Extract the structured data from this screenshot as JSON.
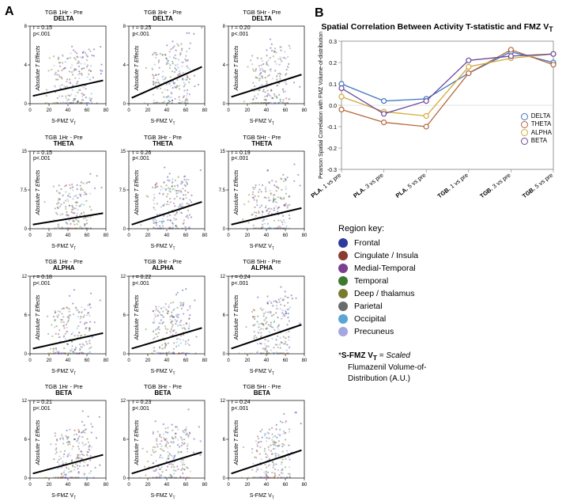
{
  "panelA_label": "A",
  "panelB_label": "B",
  "scatter": {
    "ylabel": "Absolute T Effects",
    "xlabel": "S-FMZ V",
    "xlabel_sub": "T",
    "xlim": [
      0,
      80
    ],
    "xticks": [
      0,
      20,
      40,
      60,
      80
    ],
    "ylim_by_row": [
      [
        0,
        8
      ],
      [
        0,
        15
      ],
      [
        0,
        12
      ],
      [
        0,
        12
      ]
    ],
    "yticks_by_row": [
      [
        0,
        8
      ],
      [
        0,
        15
      ],
      [
        0,
        12
      ],
      [
        0,
        12
      ]
    ],
    "regions": [
      {
        "name": "Frontal",
        "color": "#2e3a9c"
      },
      {
        "name": "Cingulate / Insula",
        "color": "#8b3a2f"
      },
      {
        "name": "Medial-Temporal",
        "color": "#7a3f8f"
      },
      {
        "name": "Temporal",
        "color": "#3d7a2e"
      },
      {
        "name": "Deep / thalamus",
        "color": "#7a7a2e"
      },
      {
        "name": "Parietal",
        "color": "#6b6b6b"
      },
      {
        "name": "Occipital",
        "color": "#5aa5d6"
      },
      {
        "name": "Precuneus",
        "color": "#a5a5e0"
      }
    ],
    "columns": [
      "TGB 1Hr - Pre",
      "TGB 3Hr - Pre",
      "TGB 5Hr - Pre"
    ],
    "bands": [
      "DELTA",
      "THETA",
      "ALPHA",
      "BETA"
    ],
    "cells": [
      {
        "band": "DELTA",
        "col": 0,
        "r": 0.15,
        "p": "<.001",
        "trend": [
          0.8,
          2.4
        ]
      },
      {
        "band": "DELTA",
        "col": 1,
        "r": 0.25,
        "p": "<.001",
        "trend": [
          0.6,
          3.8
        ]
      },
      {
        "band": "DELTA",
        "col": 2,
        "r": 0.2,
        "p": "<.001",
        "trend": [
          0.7,
          3.0
        ]
      },
      {
        "band": "THETA",
        "col": 0,
        "r": 0.15,
        "p": "<.001",
        "trend": [
          0.8,
          3.0
        ]
      },
      {
        "band": "THETA",
        "col": 1,
        "r": 0.26,
        "p": "<.001",
        "trend": [
          0.8,
          5.2
        ]
      },
      {
        "band": "THETA",
        "col": 2,
        "r": 0.19,
        "p": "<.001",
        "trend": [
          0.8,
          4.0
        ]
      },
      {
        "band": "ALPHA",
        "col": 0,
        "r": 0.18,
        "p": "<.001",
        "trend": [
          0.8,
          3.2
        ]
      },
      {
        "band": "ALPHA",
        "col": 1,
        "r": 0.22,
        "p": "<.001",
        "trend": [
          0.8,
          4.0
        ]
      },
      {
        "band": "ALPHA",
        "col": 2,
        "r": 0.24,
        "p": "<.001",
        "trend": [
          0.8,
          4.5
        ]
      },
      {
        "band": "BETA",
        "col": 0,
        "r": 0.21,
        "p": "<.001",
        "trend": [
          0.7,
          3.6
        ]
      },
      {
        "band": "BETA",
        "col": 1,
        "r": 0.23,
        "p": "<.001",
        "trend": [
          0.7,
          4.0
        ]
      },
      {
        "band": "BETA",
        "col": 2,
        "r": 0.24,
        "p": "<.001",
        "trend": [
          0.7,
          4.3
        ]
      }
    ],
    "point_count": 220,
    "point_opacity": 0.45,
    "trend_color": "#000000",
    "trend_width": 2
  },
  "linechart": {
    "title": "Spatial Correlation Between Activity T-statistic and FMZ V",
    "title_sub": "T",
    "ylabel": "Pearson Spatial Correlation with FMZ Volume-of-distribution",
    "ylim": [
      -0.3,
      0.3
    ],
    "yticks": [
      -0.3,
      -0.2,
      -0.1,
      0.0,
      0.1,
      0.2,
      0.3
    ],
    "xlabels": [
      "PLA. 1 vs pre",
      "PLA. 3 vs pre",
      "PLA. 5 vs pre",
      "TGB. 1 vs pre",
      "TGB. 3 vs pre",
      "TGB. 5 vs pre"
    ],
    "xlabels_bold": [
      false,
      false,
      false,
      true,
      true,
      true
    ],
    "series": [
      {
        "name": "DELTA",
        "color": "#3d74c4",
        "values": [
          0.1,
          0.02,
          0.03,
          0.15,
          0.25,
          0.2
        ]
      },
      {
        "name": "THETA",
        "color": "#b4663a",
        "values": [
          -0.02,
          -0.08,
          -0.1,
          0.15,
          0.26,
          0.19
        ]
      },
      {
        "name": "ALPHA",
        "color": "#d4a83a",
        "values": [
          0.04,
          -0.03,
          -0.05,
          0.18,
          0.22,
          0.24
        ]
      },
      {
        "name": "BETA",
        "color": "#6b4a9c",
        "values": [
          0.08,
          -0.04,
          0.02,
          0.21,
          0.23,
          0.24
        ]
      }
    ],
    "marker": "circle-open",
    "line_width": 1.3,
    "marker_radius": 3,
    "axis_color": "#808080",
    "bg": "#ffffff"
  },
  "region_key_title": "Region key:",
  "footnote": {
    "line1_prefix": "*",
    "line1_bold": "S-FMZ V",
    "line1_sub": "T",
    "line1_rest": " = ",
    "line1_italic": "Scaled",
    "line2": "Flumazenil Volume-of-",
    "line3": "Distribution (A.U.)"
  }
}
